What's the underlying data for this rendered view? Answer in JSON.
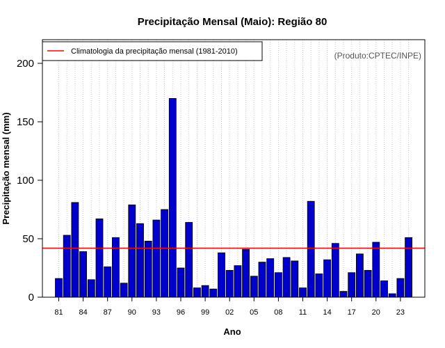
{
  "chart_data": {
    "type": "bar",
    "title": "Precipitação Mensal (Maio): Região 80",
    "xlabel": "Ano",
    "ylabel": "Precipitação mensal (mm)",
    "ylim": [
      0,
      220
    ],
    "yticks": [
      0,
      50,
      100,
      150,
      200
    ],
    "categories": [
      "81",
      "82",
      "83",
      "84",
      "85",
      "86",
      "87",
      "88",
      "89",
      "90",
      "91",
      "92",
      "93",
      "94",
      "95",
      "96",
      "97",
      "98",
      "99",
      "00",
      "01",
      "02",
      "03",
      "04",
      "05",
      "06",
      "07",
      "08",
      "09",
      "10",
      "11",
      "12",
      "13",
      "14",
      "15",
      "16",
      "17",
      "18",
      "19",
      "20",
      "21",
      "22",
      "23",
      "24"
    ],
    "xtick_labels": [
      "81",
      "84",
      "87",
      "90",
      "93",
      "96",
      "99",
      "02",
      "05",
      "08",
      "11",
      "14",
      "17",
      "20",
      "23"
    ],
    "values": [
      16,
      53,
      81,
      39,
      15,
      67,
      26,
      51,
      12,
      79,
      63,
      48,
      66,
      75,
      170,
      25,
      64,
      8,
      10,
      7,
      38,
      23,
      27,
      41,
      18,
      30,
      33,
      21,
      34,
      31,
      8,
      82,
      20,
      32,
      46,
      5,
      21,
      37,
      23,
      47,
      14,
      3,
      16,
      51
    ],
    "bar_color": "#0000CD",
    "climatology": {
      "label": "Climatologia da precipitação mensal (1981-2010)",
      "value": 42,
      "color": "#FF0000"
    },
    "credit": "(Produto:CPTEC/INPE)",
    "grid": "vertical dotted",
    "legend_position": "top-left"
  }
}
